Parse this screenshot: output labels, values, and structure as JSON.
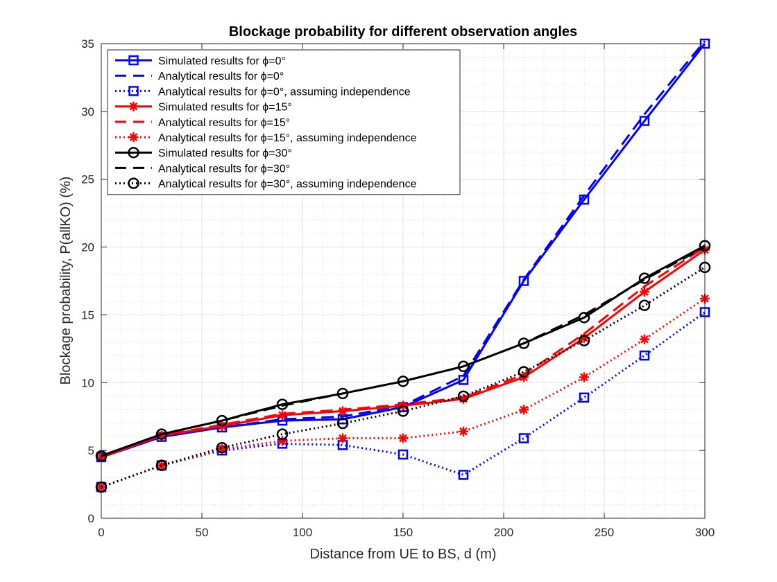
{
  "chart_data": {
    "type": "line",
    "title": "Blockage probability for different observation angles",
    "xlabel": "Distance from UE to BS, d (m)",
    "ylabel": "Blockage probability, P(allKO) (%)",
    "xlim": [
      0,
      300
    ],
    "ylim": [
      0,
      35
    ],
    "xticks": [
      0,
      50,
      100,
      150,
      200,
      250,
      300
    ],
    "yticks": [
      0,
      5,
      10,
      15,
      20,
      25,
      30,
      35
    ],
    "grid": true,
    "minor_grid": true,
    "legend_position": "top-left",
    "x": [
      0,
      30,
      60,
      90,
      120,
      150,
      180,
      210,
      240,
      270,
      300
    ],
    "series": [
      {
        "name": "Simulated results for ϕ=0°",
        "color": "#0000ff",
        "line": "solid",
        "marker": "square",
        "values": [
          4.5,
          6.0,
          6.7,
          7.2,
          7.3,
          8.2,
          10.2,
          17.5,
          23.5,
          29.3,
          35.0
        ]
      },
      {
        "name": "Analytical results for ϕ=0°",
        "color": "#0000ff",
        "line": "dashed",
        "marker": "none",
        "values": [
          4.5,
          6.0,
          6.7,
          7.3,
          7.5,
          8.3,
          10.5,
          17.6,
          23.8,
          29.8,
          35.2
        ]
      },
      {
        "name": "Analytical results for ϕ=0°, assuming independence",
        "color": "#0000ff",
        "line": "dotted",
        "marker": "square",
        "values": [
          2.3,
          3.9,
          5.0,
          5.5,
          5.4,
          4.7,
          3.2,
          5.9,
          8.9,
          12.0,
          15.2
        ]
      },
      {
        "name": "Simulated results for ϕ=15°",
        "color": "#ff0000",
        "line": "solid",
        "marker": "asterisk",
        "values": [
          4.5,
          6.1,
          6.8,
          7.6,
          7.9,
          8.3,
          8.8,
          10.4,
          13.3,
          16.7,
          19.8
        ]
      },
      {
        "name": "Analytical results for ϕ=15°",
        "color": "#ff0000",
        "line": "dashed",
        "marker": "none",
        "values": [
          4.5,
          6.1,
          6.9,
          7.7,
          8.0,
          8.4,
          8.9,
          10.6,
          13.6,
          17.1,
          20.0
        ]
      },
      {
        "name": "Analytical results for ϕ=15°, assuming independence",
        "color": "#ff0000",
        "line": "dotted",
        "marker": "asterisk",
        "values": [
          2.3,
          3.9,
          5.1,
          5.7,
          5.9,
          5.9,
          6.4,
          8.0,
          10.4,
          13.2,
          16.2
        ]
      },
      {
        "name": "Simulated results for ϕ=30°",
        "color": "#000000",
        "line": "solid",
        "marker": "circle",
        "values": [
          4.6,
          6.2,
          7.2,
          8.4,
          9.2,
          10.1,
          11.2,
          12.9,
          14.8,
          17.7,
          20.1
        ]
      },
      {
        "name": "Analytical results for ϕ=30°",
        "color": "#000000",
        "line": "dashed",
        "marker": "none",
        "values": [
          4.6,
          6.2,
          7.2,
          8.3,
          9.2,
          10.1,
          11.2,
          12.9,
          15.0,
          17.6,
          20.0
        ]
      },
      {
        "name": "Analytical results for ϕ=30°, assuming independence",
        "color": "#000000",
        "line": "dotted",
        "marker": "circle",
        "values": [
          2.3,
          3.9,
          5.2,
          6.2,
          7.0,
          7.9,
          9.0,
          10.8,
          13.1,
          15.7,
          18.5
        ]
      }
    ]
  }
}
